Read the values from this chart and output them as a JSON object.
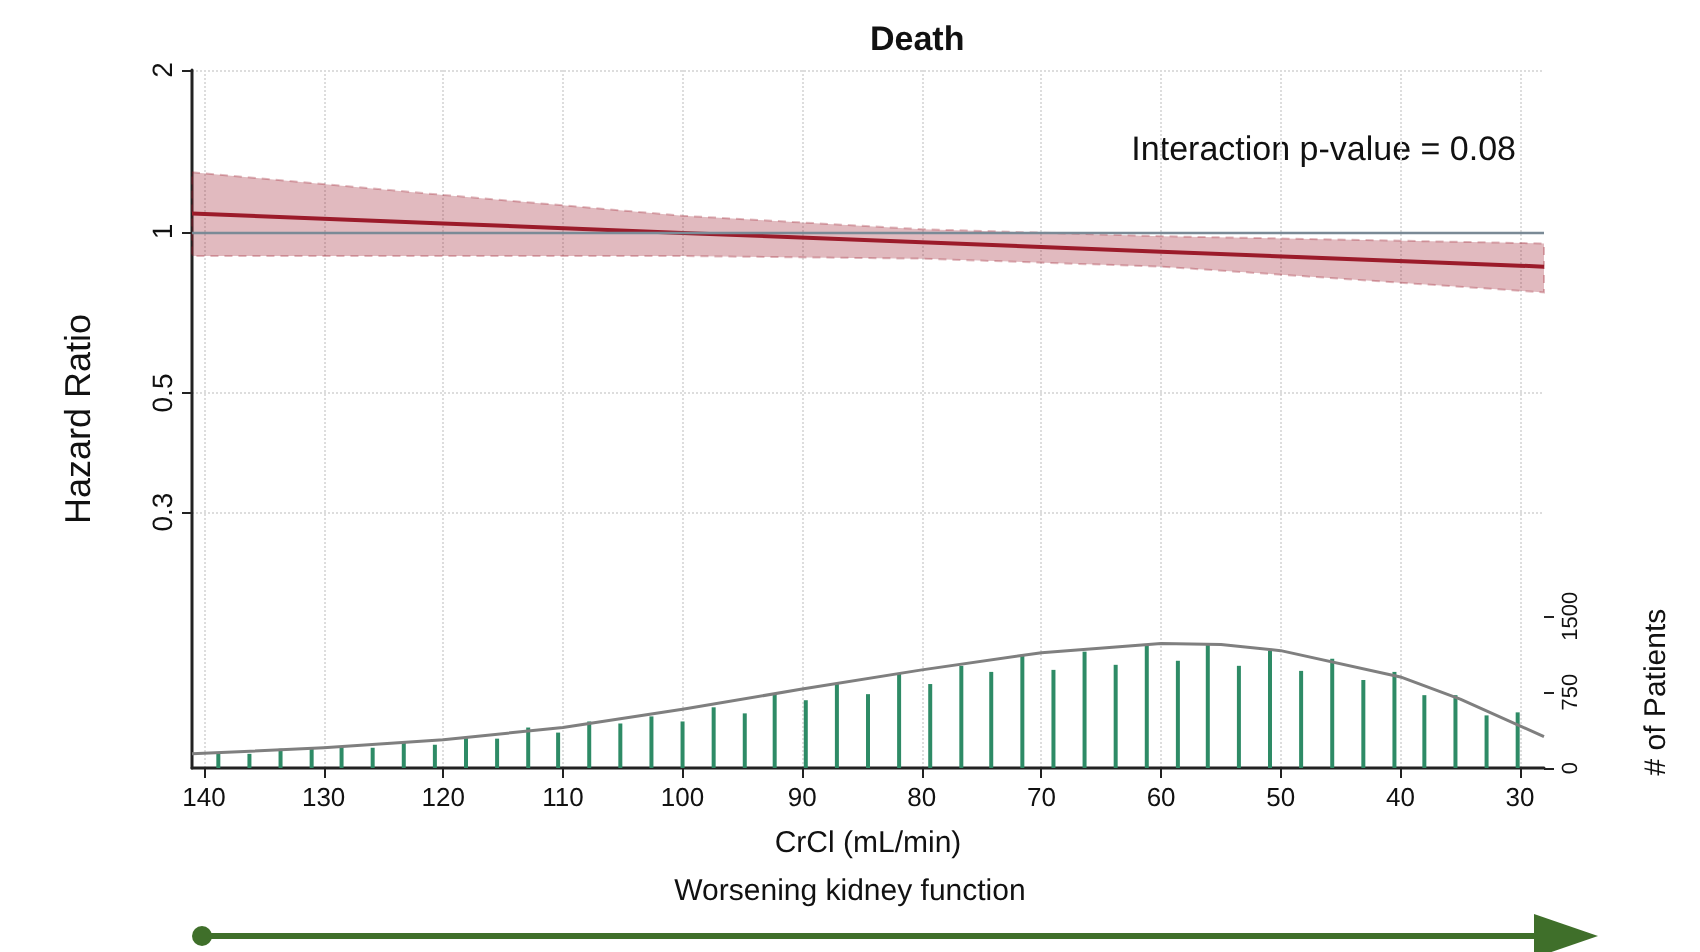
{
  "chart_data": {
    "type": "line",
    "title": "Death",
    "xlabel": "CrCl (mL/min)",
    "ylabel": "Hazard Ratio",
    "y2label": "# of Patients",
    "annotations": [
      "Interaction p-value = 0.08",
      "Worsening kidney function"
    ],
    "xlim": [
      141,
      28
    ],
    "xticks": [
      140,
      130,
      120,
      110,
      100,
      90,
      80,
      70,
      60,
      50,
      40,
      30
    ],
    "ylim": [
      0.1,
      2
    ],
    "yticks": [
      0.3,
      0.5,
      1,
      2
    ],
    "log": "y",
    "y2lim": [
      0,
      6900
    ],
    "y2ticks": [
      0,
      750,
      1500
    ],
    "grid": true,
    "ref_lines": [
      {
        "axis": "y",
        "value": 1,
        "color": "#7a8a96"
      }
    ],
    "series": [
      {
        "color": "#9b1b2a",
        "x": [
          141,
          120,
          100,
          80,
          60,
          28
        ],
        "values": [
          1.08,
          1.035,
          0.994,
          0.955,
          0.917,
          0.86
        ],
        "lower": [
          0.9,
          0.9,
          0.9,
          0.89,
          0.86,
          0.77
        ],
        "upper": [
          1.29,
          1.17,
          1.07,
          1.01,
          0.98,
          0.95
        ]
      },
      {
        "type": "bar",
        "axis": "y2",
        "color": "#2e8b66",
        "x": [
          138.8,
          136.2,
          133.6,
          131.0,
          128.5,
          125.9,
          123.3,
          120.7,
          118.1,
          115.5,
          112.9,
          110.4,
          107.8,
          105.2,
          102.6,
          100.0,
          97.4,
          94.8,
          92.3,
          89.7,
          87.1,
          84.5,
          81.9,
          79.3,
          76.7,
          74.2,
          71.6,
          69.0,
          66.4,
          63.8,
          61.2,
          58.6,
          56.1,
          53.5,
          50.9,
          48.3,
          45.7,
          43.1,
          40.5,
          38.0,
          35.4,
          32.8,
          30.2
        ],
        "values": [
          140,
          140,
          190,
          190,
          210,
          200,
          250,
          230,
          300,
          290,
          400,
          350,
          460,
          440,
          510,
          460,
          600,
          540,
          740,
          670,
          830,
          730,
          930,
          830,
          1010,
          950,
          1120,
          970,
          1150,
          1020,
          1210,
          1060,
          1220,
          1010,
          1160,
          960,
          1080,
          870,
          950,
          720,
          720,
          520,
          550
        ]
      },
      {
        "type": "line",
        "axis": "y2",
        "color": "#7f7f7f",
        "x": [
          141,
          130,
          120,
          110,
          100,
          90,
          80,
          70,
          60,
          55,
          50,
          40,
          35,
          28
        ],
        "values": [
          140,
          200,
          280,
          400,
          580,
          780,
          970,
          1140,
          1230,
          1220,
          1160,
          900,
          680,
          310
        ]
      }
    ]
  }
}
